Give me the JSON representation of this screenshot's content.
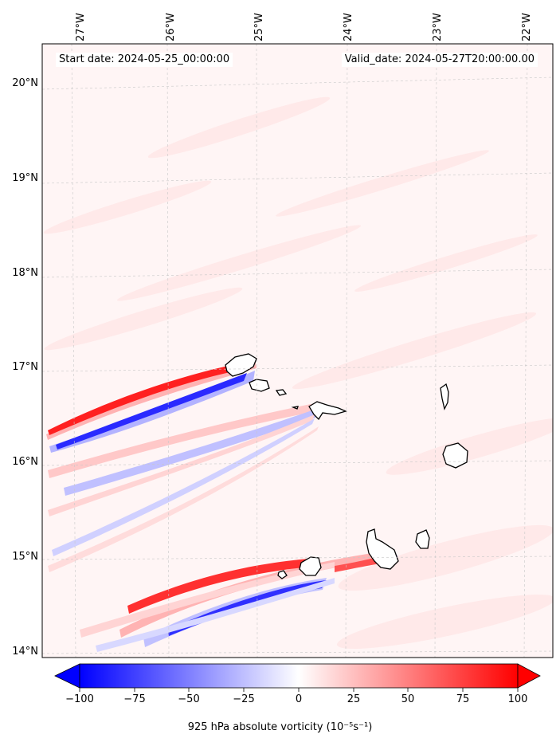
{
  "header": {
    "start_date": "Start date: 2024-05-25_00:00:00",
    "valid_date": "Valid_date: 2024-05-27T20:00:00.00"
  },
  "map": {
    "lon_labels": [
      "27°W",
      "26°W",
      "25°W",
      "24°W",
      "23°W",
      "22°W"
    ],
    "lat_labels": [
      "20°N",
      "19°N",
      "18°N",
      "17°N",
      "16°N",
      "15°N",
      "14°N"
    ],
    "gridlines": true,
    "land_fill": "#ffffff",
    "coastline_color": "#000000"
  },
  "colorbar": {
    "ticks": [
      "−100",
      "−75",
      "−50",
      "−25",
      "0",
      "25",
      "50",
      "75",
      "100"
    ],
    "label": "925 hPa absolute vorticity (10⁻⁵s⁻¹)",
    "vmin": -100,
    "vmax": 100,
    "colormap": "bwr",
    "extend": "both"
  }
}
